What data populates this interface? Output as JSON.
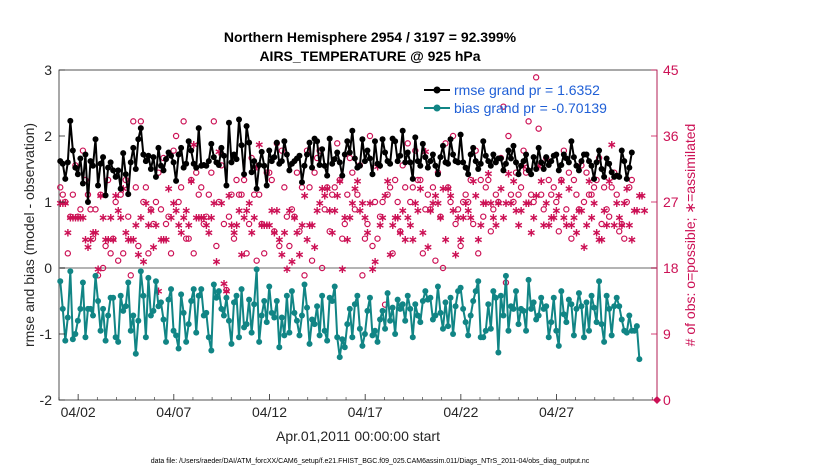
{
  "chart_data": {
    "type": "line",
    "title": "Northern Hemisphere 2954 / 3197 = 92.399%",
    "subtitle": "AIRS_TEMPERATURE @ 925 hPa",
    "xlabel": "Apr.01,2011 00:00:00 start",
    "ylabel": "rmse and bias (model - observation)",
    "ylabel_right": "# of obs: o=possible; ∗=assimilated",
    "footer": "data file: /Users/raeder/DAI/ATM_forcXX/CAM6_setup/f.e21.FHIST_BGC.f09_025.CAM6assim.011/Diags_NTrS_2011-04/obs_diag_output.nc",
    "xlim": [
      0,
      31.25
    ],
    "ylim": [
      -2,
      3
    ],
    "ylim_right": [
      0,
      45
    ],
    "x_ticks": [
      1,
      6,
      11,
      16,
      21,
      26
    ],
    "x_tick_labels": [
      "04/02",
      "04/07",
      "04/12",
      "04/17",
      "04/22",
      "04/27"
    ],
    "y_ticks": [
      -2,
      -1,
      0,
      1,
      2,
      3
    ],
    "y_ticks_right": [
      0,
      9,
      18,
      27,
      36,
      45
    ],
    "reference_line_y": 0,
    "grid": false,
    "legend_position": "top-right",
    "colors": {
      "rmse": "#000000",
      "bias": "#118585",
      "obs": "#cc1155",
      "zero_line": "#b4b4b4"
    },
    "series": [
      {
        "name": "rmse grand pr = 1.6352",
        "marker": "filled-circle",
        "values": [
          1.62,
          1.58,
          1.35,
          1.6,
          2.23,
          1.78,
          1.52,
          1.42,
          1.66,
          1.28,
          1.72,
          1.0,
          1.62,
          1.55,
          1.95,
          1.25,
          1.58,
          1.68,
          1.1,
          1.52,
          1.6,
          1.48,
          1.38,
          1.48,
          1.2,
          1.74,
          1.42,
          1.12,
          1.6,
          1.82,
          1.5,
          1.95,
          2.12,
          1.72,
          1.62,
          1.7,
          1.5,
          1.68,
          1.38,
          1.82,
          1.55,
          1.48,
          1.65,
          1.75,
          1.7,
          1.6,
          1.32,
          1.72,
          1.82,
          1.52,
          1.58,
          1.92,
          1.78,
          1.58,
          1.52,
          2.12,
          1.55,
          1.56,
          1.55,
          1.62,
          1.88,
          1.68,
          1.6,
          1.56,
          1.82,
          1.7,
          1.25,
          2.2,
          1.6,
          1.72,
          1.65,
          2.25,
          1.86,
          1.42,
          2.15,
          1.9,
          1.45,
          1.62,
          1.2,
          1.56,
          1.76,
          1.55,
          1.25,
          1.78,
          1.62,
          1.68,
          1.9,
          1.58,
          1.62,
          1.92,
          1.72,
          1.48,
          1.58,
          1.62,
          1.66,
          1.7,
          1.3,
          1.55,
          1.72,
          1.9,
          1.52,
          1.96,
          1.92,
          1.56,
          1.8,
          1.55,
          1.4,
          1.96,
          1.58,
          1.65,
          1.75,
          1.6,
          1.4,
          1.72,
          1.92,
          1.75,
          2.08,
          1.66,
          1.52,
          1.55,
          1.95,
          1.62,
          1.78,
          1.66,
          1.42,
          1.92,
          1.58,
          1.55,
          1.95,
          1.75,
          1.62,
          1.58,
          1.96,
          1.92,
          1.62,
          1.7,
          2.08,
          1.6,
          1.75,
          1.6,
          1.35,
          1.98,
          1.62,
          1.55,
          1.88,
          1.68,
          1.52,
          1.62,
          1.72,
          1.55,
          1.42,
          1.68,
          1.85,
          1.6,
          1.58,
          1.95,
          1.72,
          1.62,
          1.6,
          2.02,
          1.6,
          1.52,
          1.42,
          1.72,
          1.82,
          1.62,
          1.5,
          1.58,
          1.92,
          1.7,
          1.62,
          1.55,
          1.72,
          1.6,
          1.66,
          1.66,
          1.48,
          1.58,
          1.78,
          1.66,
          1.85,
          1.6,
          1.42,
          1.55,
          1.62,
          1.72,
          1.48,
          1.42,
          1.68,
          1.5,
          1.82,
          1.6,
          1.5,
          1.68,
          1.56,
          1.62,
          1.7,
          1.72,
          1.48,
          1.56,
          1.72,
          1.66,
          1.6,
          1.92,
          1.68,
          1.55,
          1.48,
          1.62,
          1.72,
          1.72,
          1.62,
          1.55,
          1.35,
          1.6,
          1.78,
          1.5,
          1.38,
          1.66,
          1.58,
          1.45,
          1.38,
          1.4,
          1.38,
          1.78,
          1.62,
          1.35,
          1.52,
          1.75
        ]
      },
      {
        "name": "bias grand pr = -0.70139",
        "marker": "filled-circle",
        "values": [
          -0.2,
          -0.62,
          -1.1,
          -0.75,
          -0.05,
          -1.08,
          -1.0,
          -0.8,
          -0.62,
          -0.22,
          -1.05,
          -0.62,
          -0.62,
          -0.72,
          -0.12,
          -0.5,
          -0.95,
          -0.62,
          -1.1,
          -0.72,
          -0.45,
          -0.45,
          -1.05,
          -1.12,
          -0.42,
          -0.65,
          -0.58,
          -0.22,
          -0.95,
          -0.72,
          -1.3,
          -0.8,
          -0.05,
          -0.42,
          -1.05,
          -0.15,
          -0.72,
          -0.65,
          -0.2,
          -0.58,
          -0.52,
          -0.78,
          -1.12,
          -0.48,
          -0.32,
          -0.95,
          -1.02,
          -1.22,
          -0.4,
          -0.68,
          -1.12,
          -0.85,
          -0.5,
          -0.32,
          -0.98,
          -0.42,
          -0.32,
          -0.72,
          -0.68,
          -1.05,
          -1.25,
          -0.25,
          -0.45,
          -0.35,
          -0.62,
          -0.72,
          -0.45,
          -0.8,
          -1.15,
          -0.52,
          -0.42,
          -1.05,
          -0.32,
          -0.9,
          -0.85,
          -0.48,
          -0.98,
          -0.55,
          -0.02,
          -1.12,
          -0.72,
          -0.5,
          -0.82,
          -0.28,
          -0.68,
          -0.75,
          -0.5,
          -1.2,
          -0.75,
          -1.02,
          -0.42,
          -0.98,
          -0.35,
          -0.68,
          -0.8,
          -1.02,
          -0.72,
          -0.25,
          -0.6,
          -1.15,
          -0.78,
          -0.85,
          -0.58,
          -1.02,
          -0.42,
          -0.95,
          -1.1,
          -0.45,
          -0.5,
          -0.28,
          -1.05,
          -1.35,
          -1.08,
          -1.2,
          -0.85,
          -0.62,
          -1.05,
          -0.55,
          -0.42,
          -0.92,
          -1.18,
          -1.0,
          -0.65,
          -0.45,
          -1.02,
          -0.95,
          -1.12,
          -0.78,
          -0.65,
          -0.92,
          -0.38,
          -0.8,
          -0.6,
          -1.0,
          -0.48,
          -0.62,
          -0.55,
          -0.8,
          -0.42,
          -0.62,
          -1.05,
          -0.55,
          -0.72,
          -0.82,
          -0.5,
          -0.35,
          -0.48,
          -0.45,
          -0.78,
          -0.72,
          -0.28,
          -0.68,
          -0.92,
          -0.52,
          -0.88,
          -0.45,
          -1.0,
          -0.58,
          -0.35,
          -0.3,
          -0.62,
          -0.82,
          -1.02,
          -0.72,
          -0.5,
          -0.35,
          -0.2,
          -1.05,
          -1.05,
          -0.95,
          -0.55,
          -0.92,
          -0.35,
          -0.45,
          -1.28,
          -0.42,
          -0.72,
          -0.12,
          -0.95,
          -0.58,
          -0.62,
          -0.35,
          -0.85,
          -0.62,
          -0.65,
          -0.95,
          -0.18,
          -0.62,
          -0.52,
          -0.78,
          -0.72,
          -0.45,
          -0.62,
          -0.58,
          -1.05,
          -0.82,
          -0.45,
          -0.95,
          -1.18,
          -0.35,
          -0.7,
          -0.82,
          -0.48,
          -0.55,
          -1.02,
          -0.62,
          -0.38,
          -0.58,
          -1.05,
          -0.52,
          -0.95,
          -0.42,
          -0.6,
          -0.82,
          -0.2,
          -0.85,
          -1.12,
          -0.42,
          -0.62,
          -1.02,
          -0.58,
          -0.45,
          -0.58,
          -0.78,
          -0.95,
          -0.98,
          -0.72,
          -0.95,
          -0.95,
          -0.88,
          -1.38
        ]
      }
    ],
    "obs_possible": [
      29,
      28,
      27,
      20,
      25,
      28,
      32,
      25,
      26,
      34,
      30,
      28,
      26,
      22,
      26,
      17,
      28,
      18,
      21,
      30,
      20,
      22,
      27,
      19,
      28,
      20,
      30,
      25,
      17,
      38,
      29,
      21,
      38,
      27,
      29,
      20,
      26,
      24,
      27,
      31,
      26,
      33,
      24,
      25,
      20,
      34,
      36,
      27,
      29,
      38,
      22,
      22,
      30,
      20,
      31,
      28,
      29,
      24,
      25,
      28,
      31,
      38,
      21,
      27,
      32,
      24,
      15,
      25,
      28,
      22,
      30,
      28,
      28,
      30,
      20,
      24,
      33,
      28,
      19,
      28,
      24,
      20,
      31,
      31,
      30,
      23,
      35,
      21,
      34,
      29,
      25,
      21,
      26,
      25,
      31,
      23,
      29,
      17,
      34,
      29,
      19,
      31,
      33,
      34,
      18,
      26,
      29,
      23,
      28,
      29,
      35,
      30,
      22,
      24,
      28,
      33,
      31,
      26,
      28,
      32,
      17,
      22,
      24,
      36,
      21,
      27,
      22,
      25,
      27,
      13,
      28,
      29,
      20,
      30,
      27,
      23,
      32,
      29,
      35,
      27,
      29,
      34,
      30,
      30,
      20,
      26,
      28,
      26,
      29,
      19,
      31,
      25,
      18,
      35,
      29,
      27,
      36,
      24,
      26,
      21,
      27,
      28,
      27,
      30,
      24,
      34,
      20,
      30,
      25,
      29,
      30,
      23,
      26,
      28,
      27,
      33,
      40,
      16,
      36,
      28,
      27,
      31,
      28,
      29,
      34,
      31,
      38,
      28,
      27,
      44,
      37,
      28,
      26,
      33,
      30,
      28,
      29,
      27,
      23,
      30,
      34,
      26,
      31,
      22,
      30,
      28,
      26,
      32,
      27,
      31,
      28,
      28,
      29,
      30,
      33,
      24,
      29,
      26,
      25,
      29,
      31,
      28,
      23,
      24,
      22,
      27,
      29,
      30
    ],
    "obs_assimilated": [
      27,
      27,
      27,
      23,
      25,
      25,
      25,
      25,
      25,
      25,
      22,
      21,
      22,
      23,
      23,
      18,
      28,
      25,
      22,
      22,
      25,
      22,
      28,
      26,
      25,
      29,
      23,
      22,
      22,
      22,
      24,
      20,
      25,
      19,
      27,
      24,
      26,
      21,
      24,
      15,
      22,
      22,
      22,
      29,
      25,
      27,
      26,
      24,
      23,
      25,
      26,
      24,
      30,
      35,
      25,
      25,
      25,
      25,
      24,
      23,
      25,
      27,
      19,
      34,
      27,
      16,
      15,
      28,
      24,
      23,
      24,
      26,
      20,
      25,
      26,
      27,
      23,
      25,
      32,
      35,
      24,
      24,
      24,
      24,
      26,
      23,
      26,
      22,
      20,
      23,
      18,
      26,
      19,
      25,
      23,
      20,
      24,
      28,
      22,
      24,
      24,
      21,
      26,
      27,
      29,
      28,
      29,
      26,
      23,
      26,
      28,
      30,
      18,
      25,
      22,
      25,
      27,
      29,
      30,
      26,
      27,
      25,
      23,
      27,
      18,
      19,
      32,
      24,
      25,
      28,
      30,
      20,
      24,
      25,
      25,
      23,
      26,
      22,
      25,
      24,
      22,
      27,
      26,
      29,
      23,
      34,
      21,
      26,
      27,
      28,
      27,
      25,
      29,
      22,
      29,
      28,
      26,
      20,
      25,
      22,
      25,
      27,
      26,
      25,
      30,
      28,
      22,
      24,
      27,
      27,
      31,
      27,
      25,
      24,
      27,
      29,
      25,
      27,
      31,
      27,
      30,
      26,
      24,
      26,
      32,
      27,
      27,
      23,
      25,
      28,
      32,
      30,
      24,
      27,
      24,
      25,
      25,
      26,
      28,
      30,
      25,
      24,
      29,
      24,
      25,
      23,
      26,
      26,
      21,
      24,
      30,
      25,
      27,
      23,
      22,
      22,
      26,
      24,
      30,
      35,
      24,
      27,
      25,
      24,
      27,
      29,
      24,
      22,
      26,
      26,
      28,
      28,
      26
    ]
  }
}
